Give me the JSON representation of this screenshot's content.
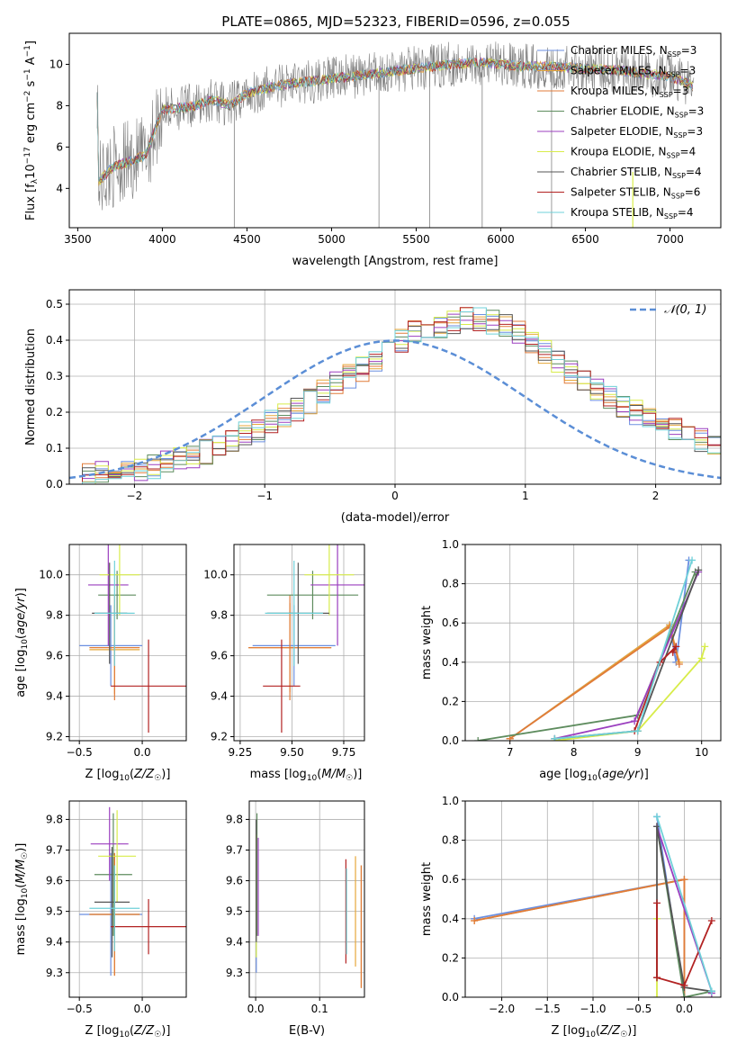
{
  "figure": {
    "title": "PLATE=0865, MJD=52323, FIBERID=0596, z=0.055"
  },
  "colors": {
    "Chabrier MILES": "#6b8fe0",
    "Salpeter MILES": "#e6a73a",
    "Kroupa MILES": "#e07b39",
    "Chabrier ELODIE": "#5e8c5e",
    "Salpeter ELODIE": "#9b3fbf",
    "Kroupa ELODIE": "#d8ec4a",
    "Chabrier STELIB": "#555555",
    "Salpeter STELIB": "#b22222",
    "Kroupa STELIB": "#6fd0d8",
    "normal": "#5b8ed6",
    "data": "#808080"
  },
  "chart_data": [
    {
      "id": "spectrum",
      "type": "line",
      "title": "PLATE=0865, MJD=52323, FIBERID=0596, z=0.055",
      "xlabel": "wavelength [Angstrom, rest frame]",
      "ylabel": "Flux [f_λ 10^-17 erg cm^-2 s^-1 A^-1]",
      "xlim": [
        3450,
        7300
      ],
      "ylim": [
        2.1,
        11.5
      ],
      "xticks": [
        3500,
        4000,
        4500,
        5000,
        5500,
        6000,
        6500,
        7000
      ],
      "yticks": [
        4,
        6,
        8,
        10
      ],
      "legend_position": "right",
      "legend": [
        {
          "name": "Chabrier MILES, N",
          "sub": "SSP",
          "tail": "=3"
        },
        {
          "name": "Salpeter MILES, N",
          "sub": "SSP",
          "tail": "=3"
        },
        {
          "name": "Kroupa MILES, N",
          "sub": "SSP",
          "tail": "=3"
        },
        {
          "name": "Chabrier ELODIE, N",
          "sub": "SSP",
          "tail": "=3"
        },
        {
          "name": "Salpeter ELODIE, N",
          "sub": "SSP",
          "tail": "=3"
        },
        {
          "name": "Kroupa ELODIE, N",
          "sub": "SSP",
          "tail": "=4"
        },
        {
          "name": "Chabrier STELIB, N",
          "sub": "SSP",
          "tail": "=4"
        },
        {
          "name": "Salpeter STELIB, N",
          "sub": "SSP",
          "tail": "=6"
        },
        {
          "name": "Kroupa STELIB, N",
          "sub": "SSP",
          "tail": "=4"
        }
      ],
      "continuum_x": [
        3620,
        3700,
        3800,
        3900,
        4000,
        4100,
        4200,
        4300,
        4400,
        4500,
        4700,
        4900,
        5100,
        5300,
        5500,
        5700,
        5900,
        6100,
        6300,
        6500,
        6700,
        6900,
        7000,
        7100,
        7140
      ],
      "continuum_y": [
        4.3,
        5.0,
        5.3,
        5.6,
        7.8,
        7.9,
        8.0,
        8.3,
        8.0,
        8.6,
        9.0,
        9.2,
        9.4,
        9.6,
        9.8,
        10.0,
        10.1,
        9.9,
        9.9,
        9.8,
        9.7,
        9.5,
        9.4,
        9.1,
        8.9
      ],
      "x_range": [
        3615,
        7140
      ]
    },
    {
      "id": "residuals",
      "type": "step",
      "xlabel": "(data-model)/error",
      "ylabel": "Normed distribution",
      "xlim": [
        -2.5,
        2.5
      ],
      "ylim": [
        0,
        0.54
      ],
      "xticks": [
        -2,
        -1,
        0,
        1,
        2
      ],
      "yticks": [
        0.0,
        0.1,
        0.2,
        0.3,
        0.4,
        0.5
      ],
      "legend": [
        "𝒩(0, 1)"
      ],
      "bin_width": 0.1,
      "bin_start": -2.5,
      "base": [
        0.03,
        0.03,
        0.03,
        0.03,
        0.04,
        0.04,
        0.05,
        0.06,
        0.07,
        0.08,
        0.09,
        0.11,
        0.12,
        0.14,
        0.15,
        0.17,
        0.19,
        0.21,
        0.23,
        0.26,
        0.28,
        0.3,
        0.32,
        0.34,
        0.37,
        0.4,
        0.42,
        0.43,
        0.44,
        0.45,
        0.46,
        0.46,
        0.45,
        0.44,
        0.42,
        0.4,
        0.37,
        0.34,
        0.31,
        0.29,
        0.26,
        0.24,
        0.21,
        0.2,
        0.18,
        0.16,
        0.15,
        0.13,
        0.12,
        0.1
      ]
    },
    {
      "id": "z-age",
      "type": "errorbar",
      "xlabel": "Z [log10(Z/Z☉)]",
      "ylabel": "age [log10(age/yr)]",
      "xlim": [
        -0.58,
        0.35
      ],
      "ylim": [
        9.18,
        10.15
      ],
      "xticks": [
        -0.5,
        0.0
      ],
      "yticks": [
        9.2,
        9.4,
        9.6,
        9.8,
        10.0
      ],
      "points": [
        {
          "model": "Chabrier MILES",
          "x": -0.25,
          "xerr": 0.25,
          "y": 9.65,
          "yerr": 0.2
        },
        {
          "model": "Salpeter MILES",
          "x": -0.22,
          "xerr": 0.2,
          "y": 9.63,
          "yerr": 0.22
        },
        {
          "model": "Kroupa MILES",
          "x": -0.22,
          "xerr": 0.2,
          "y": 9.64,
          "yerr": 0.26
        },
        {
          "model": "Chabrier ELODIE",
          "x": -0.2,
          "xerr": 0.15,
          "y": 9.9,
          "yerr": 0.12
        },
        {
          "model": "Salpeter ELODIE",
          "x": -0.27,
          "xerr": 0.16,
          "y": 9.95,
          "yerr": 0.3
        },
        {
          "model": "Kroupa ELODIE",
          "x": -0.18,
          "xerr": 0.16,
          "y": 10.0,
          "yerr": 0.2
        },
        {
          "model": "Chabrier STELIB",
          "x": -0.26,
          "xerr": 0.14,
          "y": 9.81,
          "yerr": 0.25
        },
        {
          "model": "Salpeter STELIB",
          "x": 0.05,
          "xerr": 0.3,
          "y": 9.45,
          "yerr": 0.23
        },
        {
          "model": "Kroupa STELIB",
          "x": -0.22,
          "xerr": 0.16,
          "y": 9.81,
          "yerr": 0.26
        }
      ]
    },
    {
      "id": "mass-age",
      "type": "errorbar",
      "xlabel": "mass [log10(M/M☉)]",
      "ylabel": "",
      "xlim": [
        9.22,
        9.85
      ],
      "ylim": [
        9.18,
        10.15
      ],
      "xticks": [
        9.25,
        9.5,
        9.75
      ],
      "yticks": [
        9.2,
        9.4,
        9.6,
        9.8,
        10.0
      ],
      "points": [
        {
          "model": "Chabrier MILES",
          "x": 9.51,
          "xerr": 0.2,
          "y": 9.65,
          "yerr": 0.2
        },
        {
          "model": "Salpeter MILES",
          "x": 9.49,
          "xerr": 0.2,
          "y": 9.64,
          "yerr": 0.22
        },
        {
          "model": "Kroupa MILES",
          "x": 9.49,
          "xerr": 0.2,
          "y": 9.64,
          "yerr": 0.26
        },
        {
          "model": "Chabrier ELODIE",
          "x": 9.6,
          "xerr": 0.22,
          "y": 9.9,
          "yerr": 0.12
        },
        {
          "model": "Salpeter ELODIE",
          "x": 9.72,
          "xerr": 0.13,
          "y": 9.95,
          "yerr": 0.3
        },
        {
          "model": "Kroupa ELODIE",
          "x": 9.68,
          "xerr": 0.12,
          "y": 10.0,
          "yerr": 0.2
        },
        {
          "model": "Chabrier STELIB",
          "x": 9.53,
          "xerr": 0.15,
          "y": 9.81,
          "yerr": 0.25
        },
        {
          "model": "Salpeter STELIB",
          "x": 9.45,
          "xerr": 0.09,
          "y": 9.45,
          "yerr": 0.23
        },
        {
          "model": "Kroupa STELIB",
          "x": 9.51,
          "xerr": 0.14,
          "y": 9.81,
          "yerr": 0.26
        }
      ]
    },
    {
      "id": "age-weight",
      "type": "line",
      "xlabel": "age [log10(age/yr)]",
      "ylabel": "mass weight",
      "xlim": [
        6.3,
        10.3
      ],
      "ylim": [
        0,
        1
      ],
      "xticks": [
        7,
        8,
        9,
        10
      ],
      "yticks": [
        0.0,
        0.2,
        0.4,
        0.6,
        0.8,
        1.0
      ],
      "series": [
        {
          "model": "Chabrier MILES",
          "x": [
            7.0,
            9.5,
            9.6,
            9.8
          ],
          "y": [
            0.01,
            0.59,
            0.4,
            0.92
          ]
        },
        {
          "model": "Salpeter MILES",
          "x": [
            7.0,
            9.5,
            9.65
          ],
          "y": [
            0.01,
            0.59,
            0.4
          ]
        },
        {
          "model": "Kroupa MILES",
          "x": [
            7.0,
            9.5,
            9.65
          ],
          "y": [
            0.01,
            0.58,
            0.39
          ]
        },
        {
          "model": "Chabrier ELODIE",
          "x": [
            6.5,
            9.0,
            9.9
          ],
          "y": [
            0.0,
            0.13,
            0.86
          ]
        },
        {
          "model": "Salpeter ELODIE",
          "x": [
            7.7,
            8.95,
            9.95
          ],
          "y": [
            0.01,
            0.1,
            0.86
          ]
        },
        {
          "model": "Kroupa ELODIE",
          "x": [
            7.7,
            9.0,
            10.0,
            10.05
          ],
          "y": [
            0.0,
            0.05,
            0.42,
            0.48
          ]
        },
        {
          "model": "Chabrier STELIB",
          "x": [
            7.7,
            9.0,
            9.95
          ],
          "y": [
            0.01,
            0.05,
            0.87
          ]
        },
        {
          "model": "Salpeter STELIB",
          "x": [
            8.95,
            9.35,
            9.6,
            9.55
          ],
          "y": [
            0.05,
            0.4,
            0.48,
            0.45
          ]
        },
        {
          "model": "Kroupa STELIB",
          "x": [
            7.7,
            9.0,
            9.85
          ],
          "y": [
            0.01,
            0.05,
            0.92
          ]
        }
      ]
    },
    {
      "id": "z-mass",
      "type": "errorbar",
      "xlabel": "Z [log10(Z/Z☉)]",
      "ylabel": "mass [log10(M/M☉)]",
      "xlim": [
        -0.58,
        0.35
      ],
      "ylim": [
        9.22,
        9.86
      ],
      "xticks": [
        -0.5,
        0.0
      ],
      "yticks": [
        9.3,
        9.4,
        9.5,
        9.6,
        9.7,
        9.8
      ],
      "points": [
        {
          "model": "Chabrier MILES",
          "x": -0.25,
          "xerr": 0.25,
          "y": 9.49,
          "yerr": 0.2
        },
        {
          "model": "Salpeter MILES",
          "x": -0.22,
          "xerr": 0.2,
          "y": 9.49,
          "yerr": 0.2
        },
        {
          "model": "Kroupa MILES",
          "x": -0.22,
          "xerr": 0.2,
          "y": 9.49,
          "yerr": 0.2
        },
        {
          "model": "Chabrier ELODIE",
          "x": -0.23,
          "xerr": 0.15,
          "y": 9.62,
          "yerr": 0.2
        },
        {
          "model": "Salpeter ELODIE",
          "x": -0.26,
          "xerr": 0.15,
          "y": 9.72,
          "yerr": 0.12
        },
        {
          "model": "Kroupa ELODIE",
          "x": -0.2,
          "xerr": 0.15,
          "y": 9.68,
          "yerr": 0.15
        },
        {
          "model": "Chabrier STELIB",
          "x": -0.24,
          "xerr": 0.14,
          "y": 9.53,
          "yerr": 0.18
        },
        {
          "model": "Salpeter STELIB",
          "x": 0.05,
          "xerr": 0.3,
          "y": 9.45,
          "yerr": 0.09
        },
        {
          "model": "Kroupa STELIB",
          "x": -0.22,
          "xerr": 0.2,
          "y": 9.51,
          "yerr": 0.14
        }
      ]
    },
    {
      "id": "ebv-mass",
      "type": "errorbar",
      "xlabel": "E(B-V)",
      "ylabel": "",
      "xlim": [
        -0.01,
        0.17
      ],
      "ylim": [
        9.22,
        9.86
      ],
      "xticks": [
        0.0,
        0.1
      ],
      "yticks": [
        9.3,
        9.4,
        9.5,
        9.6,
        9.7,
        9.8
      ],
      "points": [
        {
          "model": "Chabrier MILES",
          "x": 0.001,
          "xerr": 0.0,
          "y": 9.5,
          "yerr": 0.2
        },
        {
          "model": "Salpeter MILES",
          "x": 0.165,
          "xerr": 0.0,
          "y": 9.45,
          "yerr": 0.2
        },
        {
          "model": "Kroupa MILES",
          "x": 0.165,
          "xerr": 0.0,
          "y": 9.45,
          "yerr": 0.2
        },
        {
          "model": "Chabrier ELODIE",
          "x": 0.002,
          "xerr": 0.0,
          "y": 9.62,
          "yerr": 0.2
        },
        {
          "model": "Salpeter ELODIE",
          "x": 0.004,
          "xerr": 0.0,
          "y": 9.58,
          "yerr": 0.16
        },
        {
          "model": "Kroupa ELODIE",
          "x": 0.001,
          "xerr": 0.0,
          "y": 9.55,
          "yerr": 0.2
        },
        {
          "model": "Chabrier STELIB",
          "x": 0.001,
          "xerr": 0.0,
          "y": 9.6,
          "yerr": 0.2
        },
        {
          "model": "Salpeter STELIB",
          "x": 0.141,
          "xerr": 0.0,
          "y": 9.5,
          "yerr": 0.17
        },
        {
          "model": "Kroupa STELIB",
          "x": 0.142,
          "xerr": 0.0,
          "y": 9.5,
          "yerr": 0.14
        },
        {
          "model": "Salpeter MILES",
          "x": 0.156,
          "xerr": 0.0,
          "y": 9.5,
          "yerr": 0.18
        }
      ]
    },
    {
      "id": "z-weight",
      "type": "line",
      "xlabel": "Z [log10(Z/Z☉)]",
      "ylabel": "mass weight",
      "xlim": [
        -2.4,
        0.4
      ],
      "ylim": [
        0,
        1
      ],
      "xticks": [
        -2.0,
        -1.5,
        -1.0,
        -0.5,
        0.0
      ],
      "yticks": [
        0.0,
        0.2,
        0.4,
        0.6,
        0.8,
        1.0
      ],
      "series": [
        {
          "model": "Chabrier MILES",
          "x": [
            -2.3,
            0.0,
            0.0,
            -0.3
          ],
          "y": [
            0.4,
            0.6,
            0.0,
            0.92
          ]
        },
        {
          "model": "Salpeter MILES",
          "x": [
            -2.3,
            0.0,
            0.0
          ],
          "y": [
            0.39,
            0.6,
            0.0
          ]
        },
        {
          "model": "Kroupa MILES",
          "x": [
            -2.3,
            0.0,
            0.0
          ],
          "y": [
            0.39,
            0.6,
            0.0
          ]
        },
        {
          "model": "Chabrier ELODIE",
          "x": [
            -0.3,
            0.0,
            0.3
          ],
          "y": [
            0.87,
            0.0,
            0.03
          ]
        },
        {
          "model": "Salpeter ELODIE",
          "x": [
            -0.3,
            0.3,
            0.3
          ],
          "y": [
            0.87,
            0.03,
            0.02
          ]
        },
        {
          "model": "Kroupa ELODIE",
          "x": [
            -0.3,
            -0.3
          ],
          "y": [
            0.4,
            0.0
          ]
        },
        {
          "model": "Chabrier STELIB",
          "x": [
            -0.3,
            -0.3,
            0.0,
            0.3
          ],
          "y": [
            0.1,
            0.87,
            0.05,
            0.03
          ]
        },
        {
          "model": "Salpeter STELIB",
          "x": [
            -0.3,
            -0.3,
            0.0,
            0.3
          ],
          "y": [
            0.48,
            0.1,
            0.06,
            0.39
          ]
        },
        {
          "model": "Kroupa STELIB",
          "x": [
            -0.3,
            0.3,
            0.3
          ],
          "y": [
            0.92,
            0.03,
            0.03
          ]
        }
      ]
    }
  ]
}
